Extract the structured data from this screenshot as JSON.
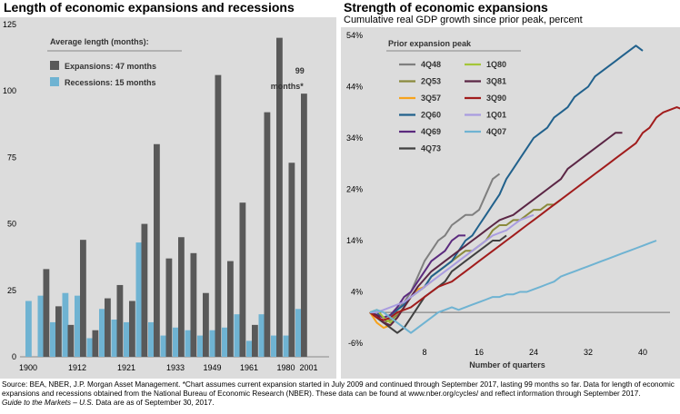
{
  "chart_data": [
    {
      "type": "bar",
      "title": "Length of economic expansions and recessions",
      "legend_title": "Average length (months):",
      "legend": [
        {
          "name": "Expansions: 47 months",
          "color": "#595959"
        },
        {
          "name": "Recessions: 15 months",
          "color": "#6fb3d2"
        }
      ],
      "annotation": {
        "lines": [
          "99",
          "months*"
        ]
      },
      "ylim": [
        0,
        125
      ],
      "yticks": [
        0,
        25,
        50,
        75,
        100,
        125
      ],
      "xtick_labels": [
        "1900",
        "1912",
        "1921",
        "1933",
        "1949",
        "1961",
        "1980",
        "2001"
      ],
      "pairs": [
        {
          "recession": 21,
          "expansion": null
        },
        {
          "recession": 23,
          "expansion": 33
        },
        {
          "recession": 13,
          "expansion": 19
        },
        {
          "recession": 24,
          "expansion": 12
        },
        {
          "recession": 23,
          "expansion": 44
        },
        {
          "recession": 7,
          "expansion": 10
        },
        {
          "recession": 18,
          "expansion": 22
        },
        {
          "recession": 14,
          "expansion": 27
        },
        {
          "recession": 13,
          "expansion": 21
        },
        {
          "recession": 43,
          "expansion": 50
        },
        {
          "recession": 13,
          "expansion": 80
        },
        {
          "recession": 8,
          "expansion": 37
        },
        {
          "recession": 11,
          "expansion": 45
        },
        {
          "recession": 10,
          "expansion": 39
        },
        {
          "recession": 8,
          "expansion": 24
        },
        {
          "recession": 10,
          "expansion": 106
        },
        {
          "recession": 11,
          "expansion": 36
        },
        {
          "recession": 16,
          "expansion": 58
        },
        {
          "recession": 6,
          "expansion": 12
        },
        {
          "recession": 16,
          "expansion": 92
        },
        {
          "recession": 8,
          "expansion": 120
        },
        {
          "recession": 8,
          "expansion": 73
        },
        {
          "recession": 18,
          "expansion": 99
        }
      ]
    },
    {
      "type": "line",
      "title": "Strength of economic expansions",
      "subtitle": "Cumulative real GDP growth since prior peak, percent",
      "xlabel": "Number of quarters",
      "legend_title": "Prior expansion peak",
      "xlim": [
        0,
        44
      ],
      "ylim": [
        -6,
        54
      ],
      "xticks": [
        8,
        16,
        24,
        32,
        40
      ],
      "yticks": [
        -6,
        4,
        14,
        24,
        34,
        44,
        54
      ],
      "series": [
        {
          "name": "4Q48",
          "color": "#7f7f7f",
          "values": [
            0,
            -1,
            -2,
            -1,
            0.5,
            2,
            4,
            7,
            10,
            12,
            14,
            15,
            17,
            18,
            19,
            19,
            20,
            23,
            26,
            27
          ]
        },
        {
          "name": "2Q53",
          "color": "#8a8a3c",
          "values": [
            0,
            -1,
            -2,
            -1.5,
            -0.5,
            1,
            3,
            4,
            5,
            7,
            8,
            9,
            10,
            11,
            12,
            12,
            13,
            14,
            16,
            17,
            17,
            18,
            18,
            19,
            20,
            20,
            21,
            21,
            22
          ]
        },
        {
          "name": "3Q57",
          "color": "#f7a31c",
          "values": [
            0,
            -2,
            -3,
            -2.5,
            -1,
            1,
            3,
            4.5,
            5,
            6
          ]
        },
        {
          "name": "2Q60",
          "color": "#21618c",
          "values": [
            0,
            0,
            -1,
            -0.5,
            0.5,
            1.5,
            3,
            4,
            5,
            7,
            8,
            9,
            10,
            12,
            14,
            15,
            17,
            19,
            21,
            23,
            26,
            28,
            30,
            32,
            34,
            35,
            36,
            38,
            39,
            40,
            42,
            43,
            44,
            46,
            47,
            48,
            49,
            50,
            51,
            52,
            51
          ]
        },
        {
          "name": "4Q69",
          "color": "#5b2a7e",
          "values": [
            0,
            -0.5,
            -1,
            -0.5,
            1,
            3,
            4,
            6,
            8,
            10,
            11,
            12,
            14,
            15,
            15
          ]
        },
        {
          "name": "4Q73",
          "color": "#404040",
          "values": [
            0,
            -1,
            -2,
            -3,
            -4,
            -3,
            -1,
            1,
            3,
            4,
            5,
            6,
            8,
            9,
            10,
            11,
            12,
            13,
            14,
            14,
            15
          ]
        },
        {
          "name": "1Q80",
          "color": "#a4c639",
          "values": [
            0,
            0.5,
            -1,
            -2,
            -1
          ]
        },
        {
          "name": "3Q81",
          "color": "#5b2645",
          "values": [
            0,
            -0.5,
            -2,
            -2.5,
            -1,
            1,
            3,
            5,
            6.5,
            8,
            9,
            10,
            11,
            12,
            13,
            14,
            15,
            16,
            17,
            18,
            18.5,
            19,
            20,
            21,
            22,
            23,
            24,
            25,
            26,
            28,
            29,
            30,
            31,
            32,
            33,
            34,
            35,
            35
          ]
        },
        {
          "name": "3Q90",
          "color": "#a11c1c",
          "values": [
            0,
            -1,
            -1.5,
            -1,
            0,
            0.5,
            1,
            2,
            3,
            4,
            5,
            5.5,
            6,
            7,
            8,
            9,
            10,
            11,
            12,
            13,
            14,
            15,
            16,
            17,
            18,
            19,
            20,
            21,
            22,
            23,
            24,
            25,
            26,
            27,
            28,
            29,
            30,
            31,
            32,
            33,
            35,
            36,
            38,
            39,
            39.5,
            40,
            39.5
          ]
        },
        {
          "name": "1Q01",
          "color": "#a99ce0",
          "values": [
            0,
            0,
            0.5,
            1,
            1.5,
            2,
            3,
            4,
            5,
            6,
            7,
            8,
            9,
            10,
            11,
            12,
            13,
            14,
            15,
            15.5,
            16,
            17,
            18,
            18.5,
            19
          ]
        },
        {
          "name": "4Q07",
          "color": "#6fb3d2",
          "values": [
            0,
            0.5,
            0,
            -1,
            -2,
            -3,
            -4,
            -3,
            -2,
            -1,
            0,
            0.5,
            1,
            0.5,
            1,
            1.5,
            2,
            2.5,
            3,
            3,
            3.5,
            3.5,
            4,
            4,
            4.5,
            5,
            5.5,
            6,
            7,
            7.5,
            8,
            8.5,
            9,
            9.5,
            10,
            10.5,
            11,
            11.5,
            12,
            12.5,
            13,
            13.5,
            14
          ]
        }
      ]
    }
  ],
  "footnote": {
    "text": "Source: BEA, NBER, J.P. Morgan Asset Management. *Chart assumes current expansion started in July 2009 and continued through September 2017, lasting 99 months so far. Data for length of economic expansions and recessions obtained from the National Bureau of Economic Research (NBER). These data can be found at www.nber.org/cycles/ and reflect information through September 2017.",
    "em": "Guide to the Markets – U.S.",
    "tail": " Data are as of September 30, 2017."
  }
}
